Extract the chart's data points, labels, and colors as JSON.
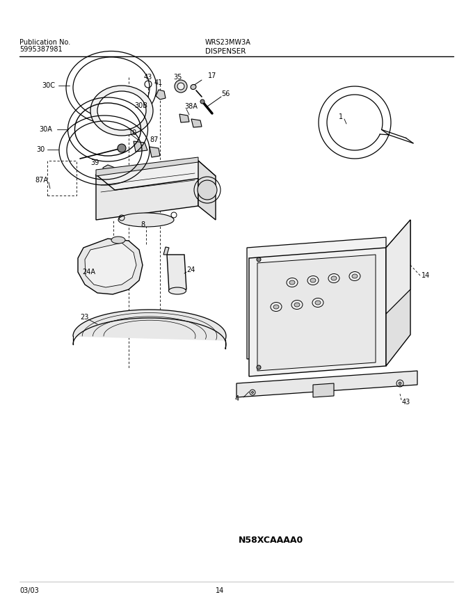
{
  "title_left1": "Publication No.",
  "title_left2": "5995387981",
  "title_center": "WRS23MW3A",
  "title_section": "DISPENSER",
  "footer_left": "03/03",
  "footer_center": "14",
  "diagram_id": "N58XCAAAA0",
  "bg_color": "#ffffff",
  "line_color": "#000000",
  "fig_width": 6.8,
  "fig_height": 8.71,
  "dpi": 100
}
